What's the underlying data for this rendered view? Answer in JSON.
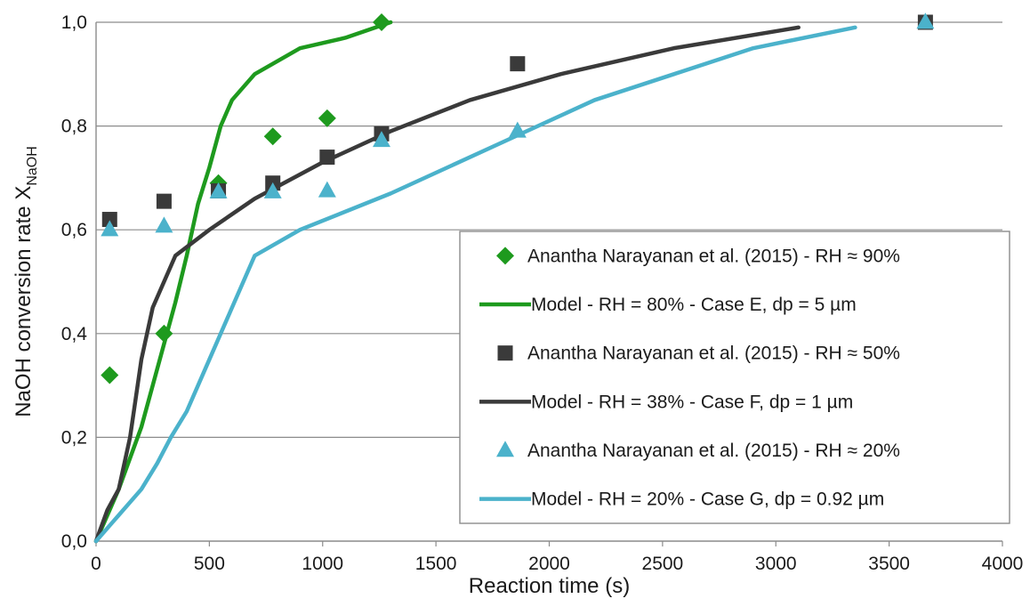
{
  "chart_data": {
    "type": "scatter",
    "title": "",
    "xlabel": "Reaction time (s)",
    "ylabel": {
      "main": "NaOH conversion rate X",
      "subscript": "NaOH"
    },
    "xlim": [
      0,
      4000
    ],
    "ylim": [
      0,
      1
    ],
    "xticks": [
      0,
      500,
      1000,
      1500,
      2000,
      2500,
      3000,
      3500,
      4000
    ],
    "xtick_labels": [
      "0",
      "500",
      "1000",
      "1500",
      "2000",
      "2500",
      "3000",
      "3500",
      "4000"
    ],
    "yticks": [
      0,
      0.2,
      0.4,
      0.6,
      0.8,
      1.0
    ],
    "ytick_labels": [
      "0,0",
      "0,2",
      "0,4",
      "0,6",
      "0,8",
      "1,0"
    ],
    "grid": "horizontal",
    "legend_placement": "lower-right",
    "series": [
      {
        "name": "Anantha Narayanan et al. (2015) - RH ≈ 90%",
        "kind": "markers",
        "marker": "diamond",
        "color": "#1e9a1e",
        "x": [
          60,
          300,
          540,
          780,
          1020,
          1260
        ],
        "y": [
          0.32,
          0.4,
          0.69,
          0.78,
          0.815,
          1.0
        ]
      },
      {
        "name": "Model - RH = 80% - Case E, dp = 5 µm",
        "kind": "line",
        "color": "#1e9a1e",
        "x": [
          0,
          100,
          200,
          300,
          350,
          400,
          450,
          500,
          550,
          600,
          700,
          900,
          1100,
          1300
        ],
        "y": [
          0,
          0.1,
          0.22,
          0.38,
          0.46,
          0.55,
          0.65,
          0.72,
          0.8,
          0.85,
          0.9,
          0.95,
          0.97,
          1.0
        ]
      },
      {
        "name": "Anantha Narayanan et al. (2015) - RH ≈ 50%",
        "kind": "markers",
        "marker": "square",
        "color": "#3a3a3a",
        "x": [
          60,
          300,
          540,
          780,
          1020,
          1260,
          1860,
          3660
        ],
        "y": [
          0.62,
          0.655,
          0.675,
          0.69,
          0.74,
          0.785,
          0.92,
          1.0
        ]
      },
      {
        "name": "Model - RH = 38% - Case F, dp = 1 µm",
        "kind": "line",
        "color": "#3a3a3a",
        "x": [
          0,
          50,
          100,
          150,
          200,
          250,
          300,
          350,
          500,
          700,
          1000,
          1300,
          1650,
          2050,
          2550,
          3100
        ],
        "y": [
          0,
          0.06,
          0.1,
          0.2,
          0.35,
          0.45,
          0.5,
          0.55,
          0.6,
          0.66,
          0.73,
          0.79,
          0.85,
          0.9,
          0.95,
          0.99
        ]
      },
      {
        "name": "Anantha Narayanan et al. (2015) - RH ≈ 20%",
        "kind": "markers",
        "marker": "triangle",
        "color": "#4bb2cb",
        "x": [
          60,
          300,
          540,
          780,
          1020,
          1260,
          1860,
          3660
        ],
        "y": [
          0.6,
          0.607,
          0.673,
          0.673,
          0.675,
          0.772,
          0.79,
          1.0
        ]
      },
      {
        "name": "Model - RH = 20% - Case G, dp = 0.92 µm",
        "kind": "line",
        "color": "#4bb2cb",
        "x": [
          0,
          100,
          200,
          270,
          330,
          400,
          500,
          600,
          700,
          900,
          1300,
          1850,
          2200,
          2550,
          2900,
          3350
        ],
        "y": [
          0,
          0.05,
          0.1,
          0.15,
          0.2,
          0.25,
          0.35,
          0.45,
          0.55,
          0.6,
          0.67,
          0.78,
          0.85,
          0.9,
          0.95,
          0.99
        ]
      }
    ]
  }
}
